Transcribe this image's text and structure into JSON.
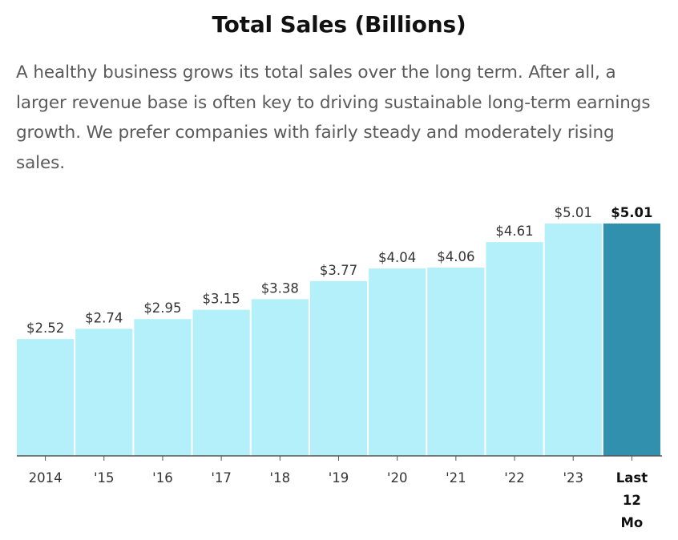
{
  "title": "Total Sales (Billions)",
  "subtitle": "A healthy business grows its total sales over the long term. After all, a larger revenue base is often key to driving sustainable long-term earnings growth. We prefer companies with fairly steady and moderately rising sales.",
  "chart_data": {
    "type": "bar",
    "title": "Total Sales (Billions)",
    "categories": [
      "2014",
      "'15",
      "'16",
      "'17",
      "'18",
      "'19",
      "'20",
      "'21",
      "'22",
      "'23",
      "Last 12 Mo"
    ],
    "values": [
      2.52,
      2.74,
      2.95,
      3.15,
      3.38,
      3.77,
      4.04,
      4.06,
      4.61,
      5.01,
      5.01
    ],
    "value_labels": [
      "$2.52",
      "$2.74",
      "$2.95",
      "$3.15",
      "$3.38",
      "$3.77",
      "$4.04",
      "$4.06",
      "$4.61",
      "$5.01",
      "$5.01"
    ],
    "highlight_index": 10,
    "ylim": [
      0,
      5.01
    ],
    "grid": false,
    "colors": {
      "bar": "#b3f0f9",
      "highlight": "#3190ae",
      "axis": "#555555"
    }
  }
}
